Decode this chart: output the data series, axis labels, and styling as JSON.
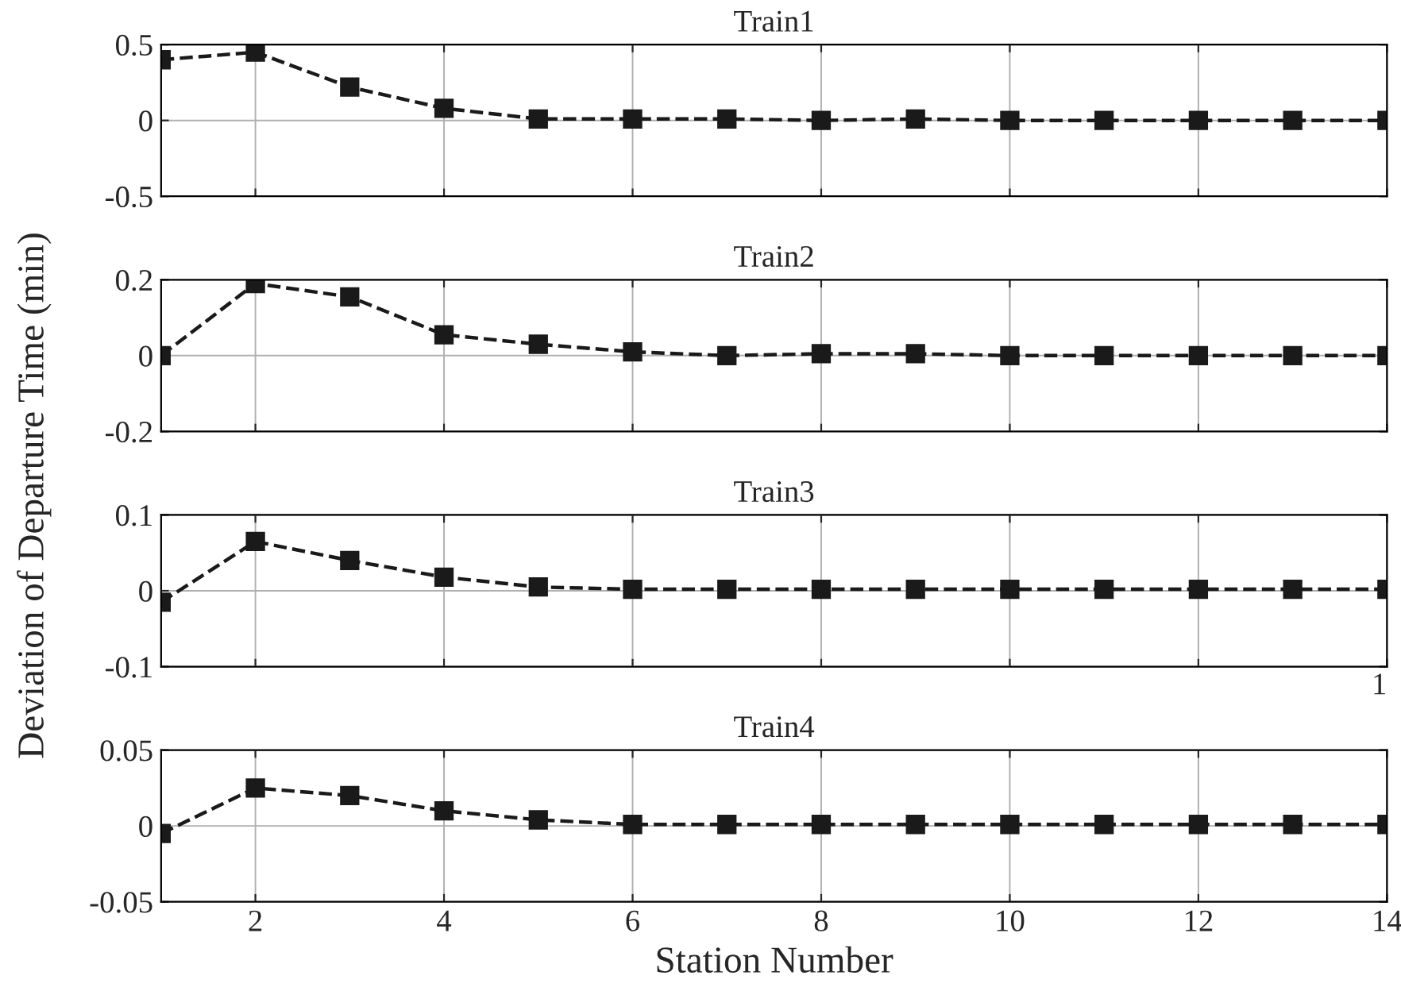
{
  "chart_data": [
    {
      "type": "line",
      "title": "Train1",
      "ylabel": "Deviation of Departure Time (min)",
      "x": [
        1,
        2,
        3,
        4,
        5,
        6,
        7,
        8,
        9,
        10,
        11,
        12,
        13,
        14
      ],
      "xlim": [
        1,
        14
      ],
      "xticks": [
        2,
        4,
        6,
        8,
        10,
        12,
        14
      ],
      "ylim": [
        -0.5,
        0.5
      ],
      "yticks": [
        -0.5,
        0,
        0.5
      ],
      "grid": true,
      "tick_labels": "y",
      "marker": "square",
      "line_style": "dashed",
      "series": [
        {
          "color": "#1a1a1a",
          "values": [
            0.4,
            0.45,
            0.22,
            0.08,
            0.01,
            0.01,
            0.01,
            0,
            0.01,
            0,
            0,
            0,
            0,
            0
          ]
        }
      ]
    },
    {
      "type": "line",
      "title": "Train2",
      "x": [
        1,
        2,
        3,
        4,
        5,
        6,
        7,
        8,
        9,
        10,
        11,
        12,
        13,
        14
      ],
      "xlim": [
        1,
        14
      ],
      "xticks": [
        2,
        4,
        6,
        8,
        10,
        12,
        14
      ],
      "ylim": [
        -0.2,
        0.2
      ],
      "yticks": [
        -0.2,
        0,
        0.2
      ],
      "grid": true,
      "tick_labels": "y",
      "marker": "square",
      "line_style": "dashed",
      "series": [
        {
          "color": "#1a1a1a",
          "values": [
            0,
            0.19,
            0.155,
            0.055,
            0.03,
            0.01,
            0,
            0.005,
            0.005,
            0,
            0,
            0,
            0,
            0
          ]
        }
      ]
    },
    {
      "type": "line",
      "title": "Train3",
      "annotations": [
        "1"
      ],
      "x": [
        1,
        2,
        3,
        4,
        5,
        6,
        7,
        8,
        9,
        10,
        11,
        12,
        13,
        14
      ],
      "xlim": [
        1,
        14
      ],
      "xticks": [
        2,
        4,
        6,
        8,
        10,
        12,
        14
      ],
      "ylim": [
        -0.1,
        0.1
      ],
      "yticks": [
        -0.1,
        0,
        0.1
      ],
      "grid": true,
      "tick_labels": "y",
      "marker": "square",
      "line_style": "dashed",
      "series": [
        {
          "color": "#1a1a1a",
          "values": [
            -0.015,
            0.065,
            0.04,
            0.018,
            0.005,
            0.002,
            0.002,
            0.002,
            0.002,
            0.002,
            0.002,
            0.002,
            0.002,
            0.002
          ]
        }
      ]
    },
    {
      "type": "line",
      "title": "Train4",
      "xlabel": "Station Number",
      "x": [
        1,
        2,
        3,
        4,
        5,
        6,
        7,
        8,
        9,
        10,
        11,
        12,
        13,
        14
      ],
      "xlim": [
        1,
        14
      ],
      "xticks": [
        2,
        4,
        6,
        8,
        10,
        12,
        14
      ],
      "ylim": [
        -0.05,
        0.05
      ],
      "yticks": [
        -0.05,
        0,
        0.05
      ],
      "grid": true,
      "marker": "square",
      "line_style": "dashed",
      "series": [
        {
          "color": "#1a1a1a",
          "values": [
            -0.005,
            0.025,
            0.02,
            0.01,
            0.004,
            0.001,
            0.001,
            0.001,
            0.001,
            0.001,
            0.001,
            0.001,
            0.001,
            0.001
          ]
        }
      ]
    }
  ]
}
